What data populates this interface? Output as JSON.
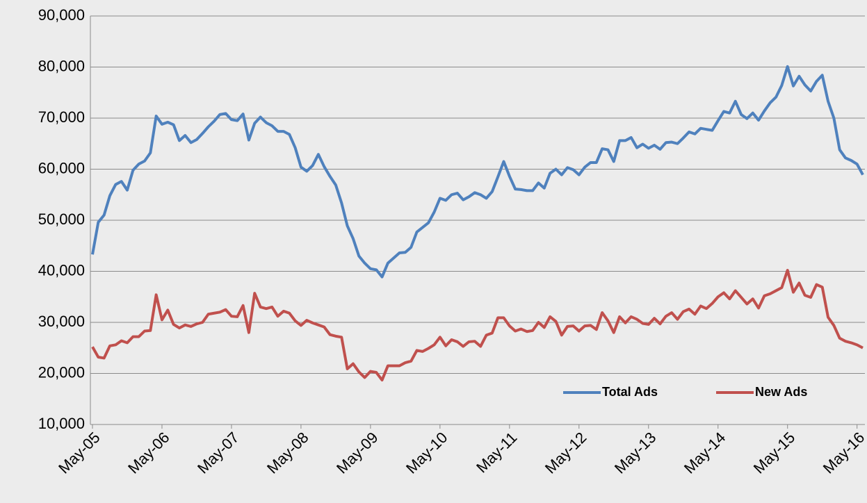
{
  "chart_data": {
    "type": "line",
    "categories": [
      "May-05",
      null,
      null,
      null,
      null,
      null,
      null,
      null,
      null,
      null,
      null,
      null,
      "May-06",
      null,
      null,
      null,
      null,
      null,
      null,
      null,
      null,
      null,
      null,
      null,
      "May-07",
      null,
      null,
      null,
      null,
      null,
      null,
      null,
      null,
      null,
      null,
      null,
      "May-08",
      null,
      null,
      null,
      null,
      null,
      null,
      null,
      null,
      null,
      null,
      null,
      "May-09",
      null,
      null,
      null,
      null,
      null,
      null,
      null,
      null,
      null,
      null,
      null,
      "May-10",
      null,
      null,
      null,
      null,
      null,
      null,
      null,
      null,
      null,
      null,
      null,
      "May-11",
      null,
      null,
      null,
      null,
      null,
      null,
      null,
      null,
      null,
      null,
      null,
      "May-12",
      null,
      null,
      null,
      null,
      null,
      null,
      null,
      null,
      null,
      null,
      null,
      "May-13",
      null,
      null,
      null,
      null,
      null,
      null,
      null,
      null,
      null,
      null,
      null,
      "May-14",
      null,
      null,
      null,
      null,
      null,
      null,
      null,
      null,
      null,
      null,
      null,
      "May-15",
      null,
      null,
      null,
      null,
      null,
      null,
      null,
      null,
      null,
      null,
      null,
      "May-16",
      null
    ],
    "series": [
      {
        "name": "Total Ads",
        "color": "#4f81bd",
        "values": [
          43300,
          49600,
          51000,
          54800,
          57000,
          57600,
          55900,
          59800,
          61000,
          61600,
          63200,
          70400,
          68800,
          69200,
          68700,
          65600,
          66600,
          65200,
          65800,
          67000,
          68300,
          69400,
          70700,
          70900,
          69700,
          69500,
          70800,
          65700,
          69000,
          70200,
          69100,
          68500,
          67400,
          67400,
          66800,
          64200,
          60400,
          59600,
          60700,
          62900,
          60500,
          58600,
          56900,
          53400,
          48900,
          46400,
          43000,
          41600,
          40500,
          40300,
          38900,
          41600,
          42600,
          43600,
          43700,
          44700,
          47700,
          48600,
          49500,
          51600,
          54300,
          53900,
          55000,
          55300,
          54000,
          54600,
          55400,
          55000,
          54300,
          55600,
          58500,
          61500,
          58600,
          56100,
          56000,
          55800,
          55800,
          57300,
          56300,
          59200,
          60000,
          58900,
          60300,
          59900,
          58900,
          60400,
          61300,
          61300,
          64000,
          63800,
          61500,
          65600,
          65600,
          66200,
          64200,
          64900,
          64100,
          64700,
          63900,
          65200,
          65300,
          65000,
          66100,
          67300,
          66900,
          68000,
          67800,
          67600,
          69500,
          71300,
          71000,
          73300,
          70700,
          69900,
          71000,
          69600,
          71400,
          73000,
          74100,
          76400,
          80100,
          76300,
          78200,
          76500,
          75300,
          77200,
          78400,
          73300,
          70000,
          63800,
          62200,
          61700,
          61000,
          58900
        ]
      },
      {
        "name": "New Ads",
        "color": "#c0504d",
        "values": [
          25200,
          23200,
          23000,
          25400,
          25600,
          26400,
          26000,
          27200,
          27200,
          28300,
          28400,
          35400,
          30500,
          32400,
          29600,
          28900,
          29500,
          29200,
          29700,
          30000,
          31600,
          31800,
          32000,
          32500,
          31200,
          31100,
          33300,
          28000,
          35700,
          33000,
          32700,
          33000,
          31200,
          32200,
          31800,
          30300,
          29400,
          30400,
          29900,
          29500,
          29100,
          27600,
          27300,
          27100,
          20900,
          21900,
          20300,
          19200,
          20400,
          20200,
          18700,
          21500,
          21500,
          21500,
          22100,
          22400,
          24500,
          24300,
          24900,
          25600,
          27100,
          25400,
          26600,
          26200,
          25300,
          26200,
          26300,
          25300,
          27500,
          27900,
          30900,
          30900,
          29300,
          28300,
          28700,
          28200,
          28400,
          30000,
          29000,
          31100,
          30200,
          27500,
          29200,
          29300,
          28300,
          29300,
          29400,
          28600,
          31900,
          30300,
          28000,
          31100,
          29900,
          31100,
          30600,
          29800,
          29600,
          30800,
          29700,
          31200,
          31900,
          30600,
          32100,
          32600,
          31600,
          33200,
          32700,
          33700,
          35000,
          35800,
          34600,
          36200,
          34900,
          33600,
          34600,
          32800,
          35200,
          35600,
          36200,
          36800,
          40200,
          35900,
          37700,
          35300,
          34900,
          37400,
          36900,
          31000,
          29400,
          26900,
          26300,
          26000,
          25600,
          25000
        ]
      }
    ],
    "ylim": [
      10000,
      90000
    ],
    "yticks": [
      {
        "value": 10000,
        "label": "10,000"
      },
      {
        "value": 20000,
        "label": "20,000"
      },
      {
        "value": 30000,
        "label": "30,000"
      },
      {
        "value": 40000,
        "label": "40,000"
      },
      {
        "value": 50000,
        "label": "50,000"
      },
      {
        "value": 60000,
        "label": "60,000"
      },
      {
        "value": 70000,
        "label": "70,000"
      },
      {
        "value": 80000,
        "label": "80,000"
      },
      {
        "value": 90000,
        "label": "90,000"
      }
    ],
    "grid": true,
    "legend": "lower right"
  }
}
